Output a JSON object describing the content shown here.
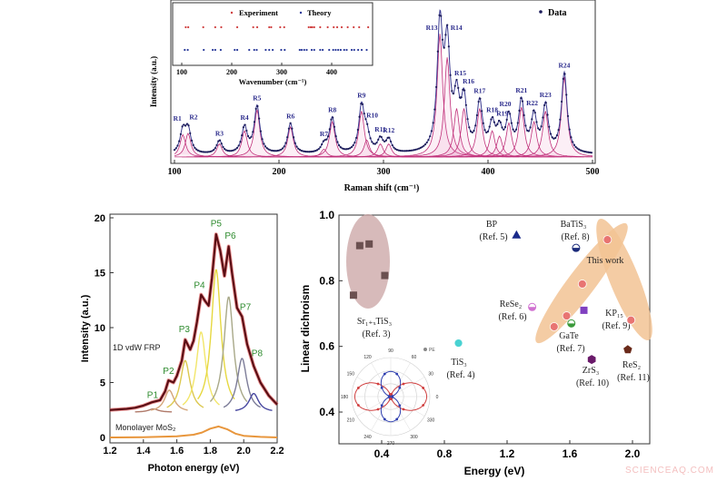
{
  "watermark": "SCIENCEAQ.COM",
  "chart_data": [
    {
      "type": "line",
      "panel": "raman",
      "xlabel": "Raman shift (cm⁻¹)",
      "ylabel": "Intensity (a.u.)",
      "xlim": [
        100,
        500
      ],
      "xticks": [
        "100",
        "200",
        "300",
        "400",
        "500"
      ],
      "legend": {
        "label": "Data",
        "position": "top-right"
      },
      "colors": {
        "data": "#1c1c5a",
        "fit": "#c0307a",
        "peak_label": "#2b2b8c"
      },
      "peaks": [
        {
          "label": "R1",
          "x": 108,
          "y": 0.17
        },
        {
          "label": "R2",
          "x": 113,
          "y": 0.18
        },
        {
          "label": "R3",
          "x": 143,
          "y": 0.1
        },
        {
          "label": "R4",
          "x": 167,
          "y": 0.2
        },
        {
          "label": "R5",
          "x": 179,
          "y": 0.36
        },
        {
          "label": "R6",
          "x": 211,
          "y": 0.23
        },
        {
          "label": "R7",
          "x": 243,
          "y": 0.06
        },
        {
          "label": "R8",
          "x": 251,
          "y": 0.27
        },
        {
          "label": "R9",
          "x": 279,
          "y": 0.35
        },
        {
          "label": "R10",
          "x": 284,
          "y": 0.13
        },
        {
          "label": "R11",
          "x": 297,
          "y": 0.1
        },
        {
          "label": "R12",
          "x": 305,
          "y": 0.1
        },
        {
          "label": "R13",
          "x": 354,
          "y": 0.94
        },
        {
          "label": "R14",
          "x": 361,
          "y": 0.76
        },
        {
          "label": "R15",
          "x": 370,
          "y": 0.37
        },
        {
          "label": "R16",
          "x": 377,
          "y": 0.37
        },
        {
          "label": "R17",
          "x": 392,
          "y": 0.37
        },
        {
          "label": "R18",
          "x": 404,
          "y": 0.2
        },
        {
          "label": "R19",
          "x": 411,
          "y": 0.16
        },
        {
          "label": "R20",
          "x": 420,
          "y": 0.26
        },
        {
          "label": "R21",
          "x": 432,
          "y": 0.38
        },
        {
          "label": "R22",
          "x": 444,
          "y": 0.27
        },
        {
          "label": "R23",
          "x": 455,
          "y": 0.35
        },
        {
          "label": "R24",
          "x": 473,
          "y": 0.61
        }
      ],
      "inset": {
        "type": "scatter",
        "xlabel": "Wavenumber (cm⁻¹)",
        "xticks": [
          "100",
          "200",
          "300",
          "400"
        ],
        "series": [
          {
            "name": "Experiment",
            "color": "#d04040",
            "x": [
              108,
              113,
              143,
              167,
              179,
              211,
              243,
              251,
              275,
              279,
              297,
              305,
              354,
              358,
              361,
              365,
              377,
              392,
              404,
              411,
              420,
              432,
              444,
              455,
              473
            ]
          },
          {
            "name": "Theory",
            "color": "#2a3a9a",
            "x": [
              106,
              112,
              144,
              162,
              167,
              178,
              206,
              211,
              235,
              245,
              250,
              268,
              275,
              282,
              299,
              306,
              336,
              340,
              345,
              350,
              360,
              365,
              377,
              382,
              395,
              403,
              408,
              413,
              418,
              425,
              430,
              440,
              445,
              453,
              460,
              470
            ]
          }
        ]
      }
    },
    {
      "type": "line",
      "panel": "photoluminescence",
      "xlabel": "Photon energy (eV)",
      "ylabel": "Intensity (a.u.)",
      "xlim": [
        1.2,
        2.2
      ],
      "ylim": [
        0,
        20
      ],
      "xticks": [
        "1.2",
        "1.4",
        "1.6",
        "1.8",
        "2.0",
        "2.2"
      ],
      "yticks": [
        "0",
        "5",
        "10",
        "15",
        "20"
      ],
      "annotations": [
        "1D vdW FRP",
        "Monolayer MoS₂"
      ],
      "series": [
        {
          "name": "1D vdW FRP",
          "color": "#5a0e14",
          "x": [
            1.2,
            1.25,
            1.3,
            1.35,
            1.4,
            1.45,
            1.5,
            1.53,
            1.55,
            1.58,
            1.6,
            1.63,
            1.65,
            1.68,
            1.7,
            1.72,
            1.745,
            1.77,
            1.79,
            1.81,
            1.835,
            1.86,
            1.885,
            1.91,
            1.93,
            1.96,
            1.99,
            2.02,
            2.06,
            2.1,
            2.15,
            2.2
          ],
          "y": [
            2.5,
            2.55,
            2.6,
            2.7,
            2.9,
            3.2,
            3.4,
            4.2,
            5.2,
            5.0,
            5.6,
            7.0,
            8.9,
            8.0,
            8.8,
            10.5,
            13.0,
            12.4,
            12.0,
            14.5,
            18.5,
            17.0,
            14.7,
            17.4,
            15.0,
            11.8,
            11.0,
            8.5,
            6.5,
            5.0,
            3.8,
            3.0
          ]
        },
        {
          "name": "Monolayer MoS₂",
          "color": "#e8963c",
          "x": [
            1.2,
            1.4,
            1.6,
            1.7,
            1.75,
            1.8,
            1.85,
            1.9,
            1.95,
            2.0,
            2.1,
            2.2
          ],
          "y": [
            0,
            0.02,
            0.1,
            0.25,
            0.45,
            0.8,
            1.0,
            0.75,
            0.35,
            0.15,
            0.05,
            0
          ]
        }
      ],
      "peaks": [
        {
          "label": "P1",
          "x": 1.46,
          "y": 2.6,
          "color": "#b07a6a"
        },
        {
          "label": "P2",
          "x": 1.555,
          "y": 4.3,
          "color": "#d4a57a"
        },
        {
          "label": "P3",
          "x": 1.65,
          "y": 7.0,
          "color": "#dcc850"
        },
        {
          "label": "P4",
          "x": 1.745,
          "y": 9.6,
          "color": "#f2e66a"
        },
        {
          "label": "P5",
          "x": 1.835,
          "y": 15.3,
          "color": "#e6d840"
        },
        {
          "label": "P6",
          "x": 1.91,
          "y": 12.8,
          "color": "#a8a888"
        },
        {
          "label": "P7",
          "x": 1.99,
          "y": 7.2,
          "color": "#7c7c98"
        },
        {
          "label": "P8",
          "x": 2.06,
          "y": 4.0,
          "color": "#4848a0"
        }
      ],
      "peak_label_color": "#2e8b2e"
    },
    {
      "type": "scatter",
      "panel": "linear-dichroism",
      "xlabel": "Energy (eV)",
      "ylabel": "Linear dichroism",
      "xlim": [
        0.13,
        2.1
      ],
      "ylim": [
        0.3,
        1.0
      ],
      "xticks": [
        "0.4",
        "0.8",
        "1.2",
        "1.6",
        "2.0"
      ],
      "yticks": [
        "0.4",
        "0.6",
        "0.8",
        "1.0"
      ],
      "series": [
        {
          "name": "Sr₁₊ₓTiS₃",
          "ref": "(Ref. 3)",
          "marker": "square",
          "color": "#6b5050",
          "x": [
            0.22,
            0.26,
            0.32,
            0.42
          ],
          "y": [
            0.756,
            0.907,
            0.912,
            0.816
          ]
        },
        {
          "name": "TiS₃",
          "ref": "(Ref. 4)",
          "marker": "circle",
          "color": "#40d0d0",
          "x": [
            0.89
          ],
          "y": [
            0.61
          ]
        },
        {
          "name": "BP",
          "ref": "(Ref. 5)",
          "marker": "triangle",
          "color": "#1a2a8a",
          "x": [
            1.26
          ],
          "y": [
            0.94
          ]
        },
        {
          "name": "ReSe₂",
          "ref": "(Ref. 6)",
          "marker": "half-circle",
          "color": "#d070d0",
          "x": [
            1.36
          ],
          "y": [
            0.72
          ]
        },
        {
          "name": "GaTe",
          "ref": "(Ref. 7)",
          "marker": "half-circle",
          "color": "#3a9a3a",
          "x": [
            1.61
          ],
          "y": [
            0.67
          ]
        },
        {
          "name": "BaTiS₃",
          "ref": "(Ref. 8)",
          "marker": "half-circle",
          "color": "#1a2a7a",
          "x": [
            1.64
          ],
          "y": [
            0.9
          ]
        },
        {
          "name": "KP₁₅",
          "ref": "(Ref. 9)",
          "marker": "square",
          "color": "#8040c0",
          "x": [
            1.69
          ],
          "y": [
            0.71
          ]
        },
        {
          "name": "ZrS₃",
          "ref": "(Ref. 10)",
          "marker": "hexagon",
          "color": "#6a1a6a",
          "x": [
            1.74
          ],
          "y": [
            0.56
          ]
        },
        {
          "name": "ReS₂",
          "ref": "(Ref. 11)",
          "marker": "pentagon",
          "color": "#6a2a1a",
          "x": [
            1.97
          ],
          "y": [
            0.59
          ]
        },
        {
          "name": "This work",
          "ref": "",
          "marker": "circle",
          "color": "#e87070",
          "x": [
            1.5,
            1.58,
            1.68,
            1.84,
            1.99
          ],
          "y": [
            0.66,
            0.693,
            0.79,
            0.925,
            0.68
          ]
        }
      ],
      "polar_inset": {
        "angle_ticks": [
          "0",
          "30",
          "60",
          "90",
          "120",
          "150",
          "180",
          "210",
          "240",
          "270",
          "300",
          "330"
        ],
        "legend": "PE",
        "series": [
          {
            "color": "#d04040",
            "lobes": "horizontal",
            "amplitude": 1.0
          },
          {
            "color": "#3040b0",
            "lobes": "vertical",
            "amplitude": 0.7
          }
        ]
      }
    }
  ]
}
